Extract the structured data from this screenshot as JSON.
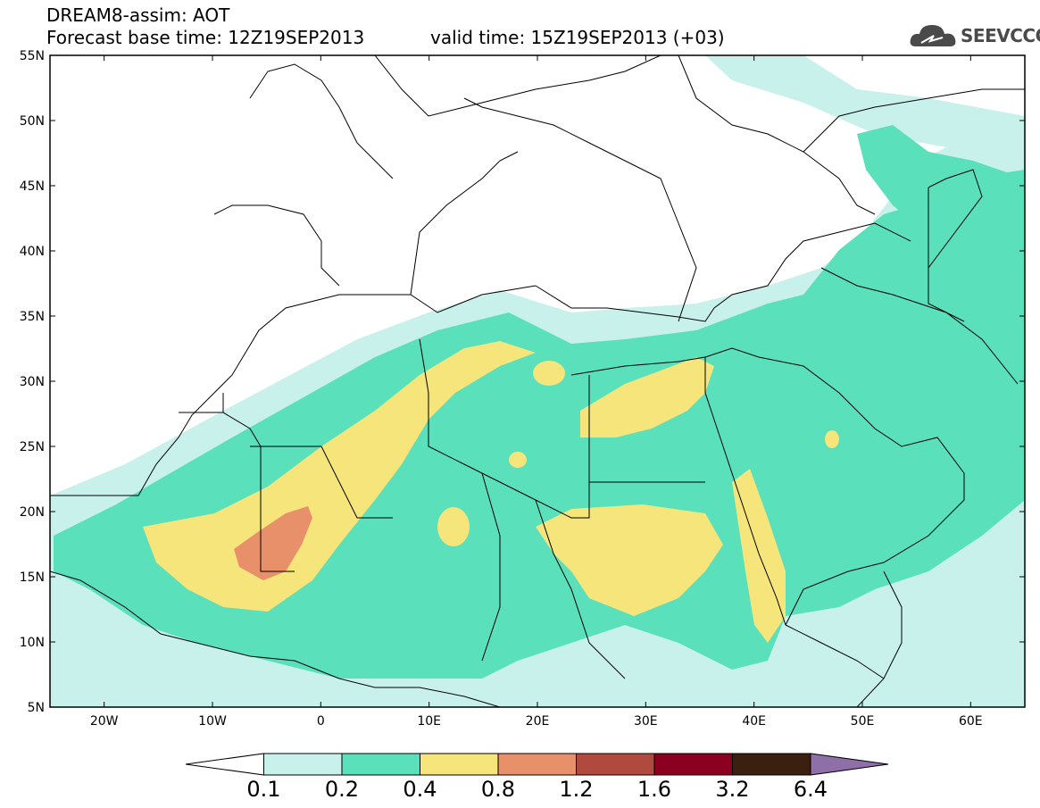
{
  "title": {
    "line1": "DREAM8-assim: AOT",
    "line2": "Forecast base time: 12Z19SEP2013",
    "valid": "valid time: 15Z19SEP2013 (+03)"
  },
  "logo": {
    "text": "SEEVCCC",
    "icon": "cloud-icon"
  },
  "map": {
    "lon_range": [
      -25,
      65
    ],
    "lat_range": [
      5,
      55
    ],
    "lat_ticks": [
      "5N",
      "10N",
      "15N",
      "20N",
      "25N",
      "30N",
      "35N",
      "40N",
      "45N",
      "50N",
      "55N"
    ],
    "lon_ticks": [
      "20W",
      "10W",
      "0",
      "10E",
      "20E",
      "30E",
      "40E",
      "50E",
      "60E"
    ]
  },
  "colorbar": {
    "levels": [
      "0.1",
      "0.2",
      "0.4",
      "0.8",
      "1.2",
      "1.6",
      "3.2",
      "6.4"
    ],
    "colors": [
      "#c8f1ec",
      "#5ae0bb",
      "#f5e57a",
      "#e8906a",
      "#b04a3e",
      "#8b0020",
      "#3b200f",
      "#8f6fa8"
    ]
  }
}
